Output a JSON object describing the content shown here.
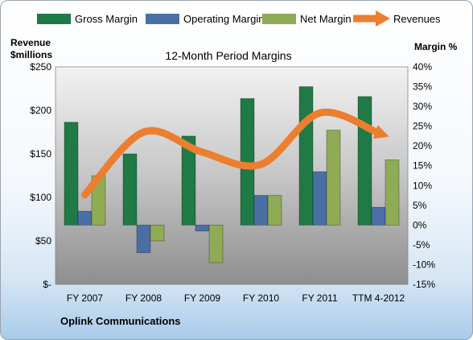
{
  "colors": {
    "gross": "#1f7a45",
    "operating": "#4a6fa5",
    "net": "#8fab55",
    "revenue_line": "#ec7e2f"
  },
  "chart_data": {
    "type": "bar",
    "title": "12-Month Period Margins",
    "left_axis_label": [
      "Revenue",
      "$millions"
    ],
    "right_axis_label": "Margin %",
    "footer_label": "Oplink Communications",
    "categories": [
      "FY 2007",
      "FY 2008",
      "FY 2009",
      "FY 2010",
      "FY 2011",
      "TTM 4-2012"
    ],
    "series": [
      {
        "name": "Gross Margin",
        "axis": "right",
        "type": "bar",
        "values": [
          26,
          18,
          22.5,
          32,
          35,
          32.5
        ]
      },
      {
        "name": "Operating Margin",
        "axis": "right",
        "type": "bar",
        "values": [
          3.5,
          -7,
          -1.5,
          7.5,
          13.5,
          4.5
        ]
      },
      {
        "name": "Net Margin",
        "axis": "right",
        "type": "bar",
        "values": [
          12.5,
          -4,
          -9.5,
          7.5,
          24,
          16.5
        ]
      },
      {
        "name": "Revenues",
        "axis": "left",
        "type": "line",
        "values": [
          103,
          175,
          152,
          138,
          197,
          174
        ]
      }
    ],
    "left_axis": {
      "min": 0,
      "max": 250,
      "ticks": [
        "$-",
        "$50",
        "$100",
        "$150",
        "$200",
        "$250"
      ]
    },
    "right_axis": {
      "min": -15,
      "max": 40,
      "ticks": [
        "-15%",
        "-10%",
        "-5%",
        "0%",
        "5%",
        "10%",
        "15%",
        "20%",
        "25%",
        "30%",
        "35%",
        "40%"
      ]
    },
    "legend_position": "top"
  }
}
